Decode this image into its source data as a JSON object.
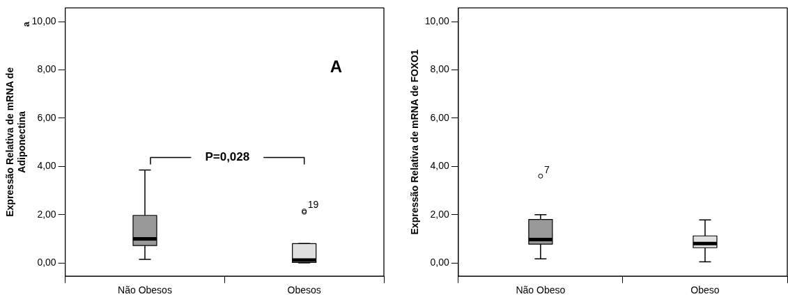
{
  "chart_data": [
    {
      "type": "box",
      "ylabel": "Expressão Relativa de mRNA de\nAdiponectina",
      "categories": [
        "Não Obesos",
        "Obesos"
      ],
      "colors": [
        "#999999",
        "#e0e0e0"
      ],
      "boxes": [
        {
          "low": 0.15,
          "q1": 0.72,
          "median": 1.0,
          "q3": 1.97,
          "high": 3.85
        },
        {
          "low": 0.0,
          "q1": 0.02,
          "median": 0.12,
          "q3": 0.8,
          "high": 0.8,
          "outliers": [
            2.1,
            2.15
          ]
        }
      ],
      "ylim": [
        -0.55,
        10.57
      ],
      "yticks": [
        {
          "value": 0,
          "label": "0,00"
        },
        {
          "value": 2,
          "label": "2,00"
        },
        {
          "value": 4,
          "label": "4,00"
        },
        {
          "value": 6,
          "label": "6,00"
        },
        {
          "value": 8,
          "label": "8,00"
        },
        {
          "value": 10,
          "label": "10,00"
        }
      ],
      "annotations": [
        "19",
        "a",
        "A",
        "P=0,028"
      ]
    },
    {
      "type": "box",
      "ylabel": "Expressão Relativa de mRNA de FOXO1",
      "categories": [
        "Não Obeso",
        "Obeso"
      ],
      "colors": [
        "#999999",
        "#e0e0e0"
      ],
      "boxes": [
        {
          "low": 0.17,
          "q1": 0.78,
          "median": 0.97,
          "q3": 1.8,
          "high": 2.0,
          "outliers": [
            3.6
          ]
        },
        {
          "low": 0.05,
          "q1": 0.63,
          "median": 0.8,
          "q3": 1.12,
          "high": 1.78
        }
      ],
      "ylim": [
        -0.55,
        10.57
      ],
      "yticks": [
        {
          "value": 0,
          "label": "0,00"
        },
        {
          "value": 2,
          "label": "2,00"
        },
        {
          "value": 4,
          "label": "4,00"
        },
        {
          "value": 6,
          "label": "6,00"
        },
        {
          "value": 8,
          "label": "8,00"
        },
        {
          "value": 10,
          "label": "10,00"
        }
      ],
      "annotations": [
        "7"
      ]
    }
  ]
}
